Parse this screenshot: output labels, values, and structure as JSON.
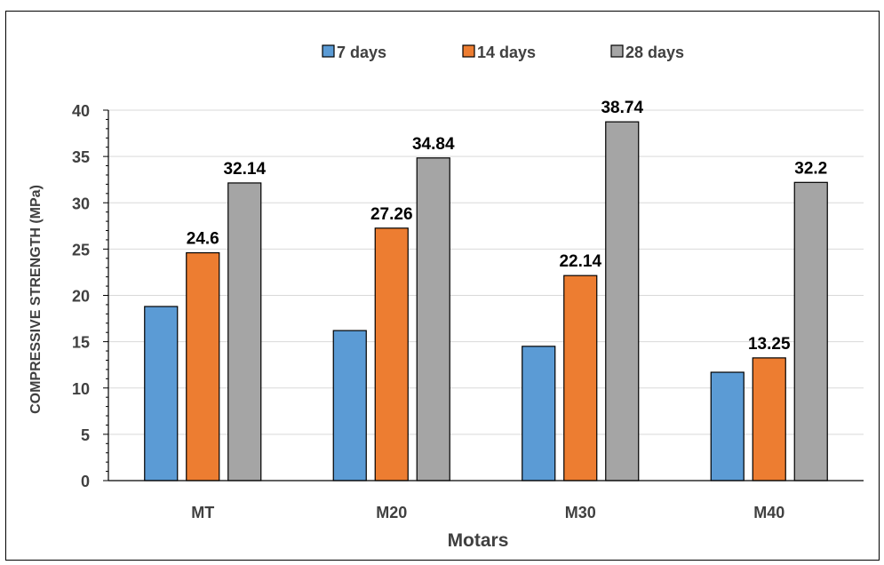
{
  "chart_data": {
    "type": "bar",
    "categories": [
      "MT",
      "M20",
      "M30",
      "M40"
    ],
    "series": [
      {
        "name": "7 days",
        "color": "#5B9BD5",
        "values": [
          18.8,
          16.2,
          14.5,
          11.7
        ],
        "labels": [
          null,
          null,
          null,
          null
        ]
      },
      {
        "name": "14 days",
        "color": "#ED7D31",
        "values": [
          24.6,
          27.26,
          22.14,
          13.25
        ],
        "labels": [
          "24.6",
          "27.26",
          "22.14",
          "13.25"
        ]
      },
      {
        "name": "28 days",
        "color": "#A5A5A5",
        "values": [
          32.14,
          34.84,
          38.74,
          32.2
        ],
        "labels": [
          "32.14",
          "34.84",
          "38.74",
          "32.2"
        ]
      }
    ],
    "xlabel": "Motars",
    "ylabel": "COMPRESSIVE STRENGTH (MPa)",
    "ylim": [
      0,
      40
    ],
    "yticks": [
      "0",
      "5",
      "10",
      "15",
      "20",
      "25",
      "30",
      "35",
      "40"
    ],
    "grid": true,
    "legend_position": "top-center",
    "text_color": "#404040",
    "grid_color": "#D9D9D9"
  }
}
